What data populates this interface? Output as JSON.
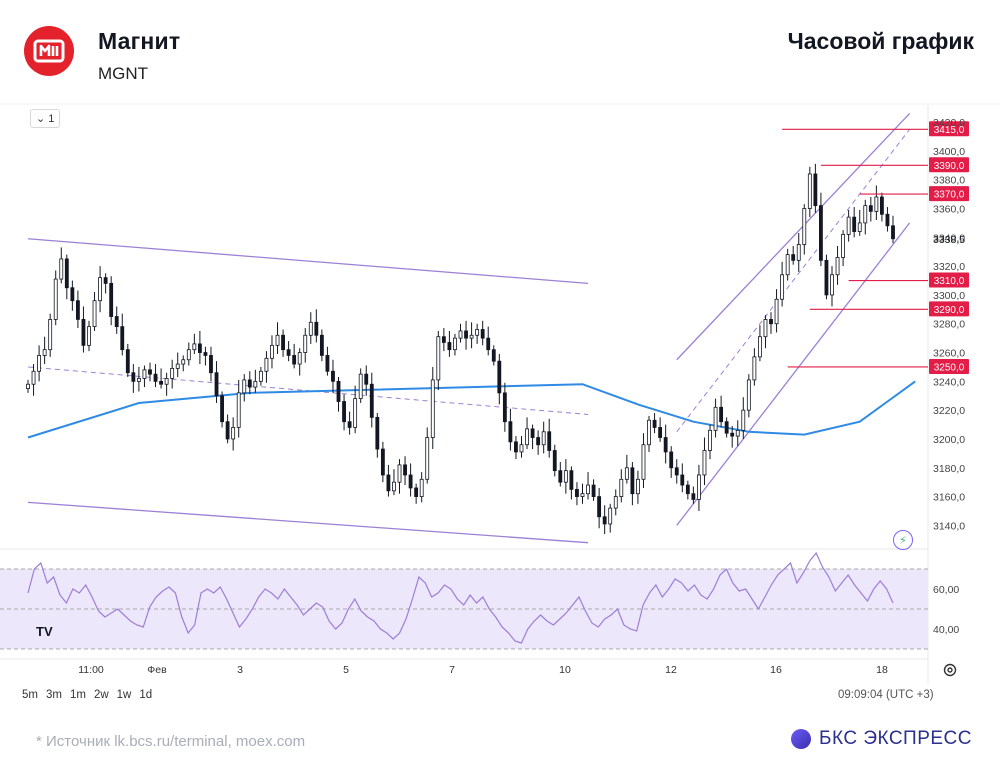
{
  "header": {
    "company": "Магнит",
    "ticker": "MGNT",
    "chart_type_title": "Часовой график"
  },
  "toolbar": {
    "interval_label": "1"
  },
  "timeframes": [
    "5m",
    "3m",
    "1m",
    "2w",
    "1w",
    "1d"
  ],
  "clock": "09:09:04 (UTC +3)",
  "footer": {
    "source": "*  Источник lk.bcs.ru/terminal, moex.com",
    "brand": "БКС ЭКСПРЕСС"
  },
  "colors": {
    "brand_red": "#e3222b",
    "candle": "#131722",
    "ma": "#2f8ae5",
    "channel": "#9c7fd6",
    "level": "#e11d48",
    "rsi": "#9c7fd6",
    "rsi_band": "#ede7fb"
  },
  "icons": [
    "magnit-logo-icon",
    "chevron-down-icon",
    "tradingview-logo-icon",
    "lightning-icon",
    "settings-icon",
    "bcs-dot-icon"
  ],
  "chart_data": {
    "type": "candlestick",
    "price_axis": {
      "range": [
        3125,
        3427
      ],
      "ticks": [
        3140,
        3160,
        3180,
        3200,
        3220,
        3240,
        3260,
        3280,
        3300,
        3320,
        3340,
        3360,
        3380,
        3400,
        3420
      ],
      "tick_labels": [
        "3140,0",
        "3160,0",
        "3180,0",
        "3200,0",
        "3220,0",
        "3240,0",
        "3260,0",
        "3280,0",
        "3300,0",
        "3320,0",
        "3340,0",
        "3360,0",
        "3380,0",
        "3400,0",
        "3420,0"
      ],
      "last_price_label": "3338,5"
    },
    "time_axis": {
      "labels": [
        "11:00",
        "Фев",
        "3",
        "5",
        "7",
        "10",
        "12",
        "16",
        "18"
      ]
    },
    "levels": [
      {
        "value": 3415,
        "label": "3415,0"
      },
      {
        "value": 3390,
        "label": "3390,0"
      },
      {
        "value": 3370,
        "label": "3370,0"
      },
      {
        "value": 3310,
        "label": "3310,0"
      },
      {
        "value": 3290,
        "label": "3290,0"
      },
      {
        "value": 3250,
        "label": "3250,0"
      }
    ],
    "closes": [
      3238,
      3247,
      3258,
      3262,
      3283,
      3311,
      3325,
      3305,
      3296,
      3283,
      3265,
      3278,
      3296,
      3312,
      3308,
      3285,
      3278,
      3262,
      3246,
      3240,
      3242,
      3248,
      3245,
      3240,
      3238,
      3242,
      3249,
      3252,
      3255,
      3262,
      3266,
      3260,
      3258,
      3246,
      3230,
      3212,
      3200,
      3208,
      3232,
      3241,
      3236,
      3240,
      3247,
      3256,
      3265,
      3272,
      3262,
      3258,
      3252,
      3260,
      3272,
      3281,
      3272,
      3258,
      3247,
      3240,
      3226,
      3212,
      3208,
      3228,
      3245,
      3238,
      3215,
      3193,
      3175,
      3164,
      3170,
      3182,
      3175,
      3166,
      3160,
      3172,
      3201,
      3241,
      3271,
      3267,
      3262,
      3270,
      3275,
      3270,
      3272,
      3276,
      3270,
      3262,
      3254,
      3232,
      3212,
      3198,
      3191,
      3196,
      3207,
      3201,
      3196,
      3205,
      3192,
      3178,
      3170,
      3178,
      3165,
      3160,
      3162,
      3168,
      3160,
      3146,
      3141,
      3152,
      3160,
      3172,
      3180,
      3162,
      3172,
      3196,
      3213,
      3208,
      3201,
      3191,
      3180,
      3175,
      3168,
      3162,
      3158,
      3175,
      3192,
      3206,
      3222,
      3212,
      3204,
      3202,
      3206,
      3220,
      3241,
      3257,
      3271,
      3283,
      3280,
      3297,
      3314,
      3328,
      3324,
      3335,
      3360,
      3384,
      3362,
      3324,
      3300,
      3314,
      3326,
      3342,
      3354,
      3344,
      3350,
      3362,
      3358,
      3368,
      3356,
      3348,
      3339
    ],
    "ma_line": [
      [
        0,
        3201
      ],
      [
        20,
        3225
      ],
      [
        40,
        3232
      ],
      [
        60,
        3234
      ],
      [
        80,
        3236
      ],
      [
        100,
        3238
      ],
      [
        110,
        3224
      ],
      [
        120,
        3212
      ],
      [
        130,
        3205
      ],
      [
        140,
        3203
      ],
      [
        150,
        3212
      ],
      [
        160,
        3240
      ]
    ],
    "channels": [
      {
        "from": [
          0,
          3339
        ],
        "to": [
          101,
          3308
        ]
      },
      {
        "from": [
          0,
          3156
        ],
        "to": [
          101,
          3128
        ]
      },
      {
        "from": [
          117,
          3255
        ],
        "to": [
          159,
          3426
        ]
      },
      {
        "from": [
          117,
          3140
        ],
        "to": [
          159,
          3350
        ]
      }
    ],
    "trend_dashed": [
      {
        "from": [
          0,
          3250
        ],
        "to": [
          101,
          3217
        ]
      },
      {
        "from": [
          117,
          3205
        ],
        "to": [
          159,
          3415
        ]
      }
    ],
    "rsi": {
      "range": [
        25,
        80
      ],
      "ticks": [
        40,
        60
      ],
      "tick_labels": [
        "40,00",
        "60,00"
      ],
      "upper": 70,
      "lower": 30,
      "values": [
        58,
        70,
        73,
        63,
        66,
        57,
        53,
        60,
        58,
        62,
        56,
        49,
        46,
        48,
        50,
        47,
        44,
        42,
        41,
        51,
        56,
        59,
        61,
        58,
        46,
        38,
        42,
        58,
        60,
        58,
        61,
        55,
        48,
        41,
        45,
        50,
        56,
        60,
        58,
        55,
        60,
        56,
        52,
        47,
        50,
        53,
        51,
        44,
        40,
        43,
        50,
        55,
        49,
        46,
        44,
        40,
        38,
        35,
        38,
        45,
        55,
        66,
        63,
        56,
        58,
        62,
        60,
        55,
        52,
        57,
        53,
        56,
        50,
        46,
        41,
        38,
        34,
        33,
        40,
        44,
        47,
        44,
        42,
        45,
        48,
        52,
        56,
        49,
        43,
        41,
        45,
        47,
        50,
        42,
        40,
        39,
        52,
        58,
        62,
        56,
        60,
        65,
        63,
        59,
        62,
        57,
        55,
        60,
        67,
        70,
        63,
        59,
        60,
        55,
        50,
        56,
        62,
        67,
        70,
        73,
        63,
        68,
        74,
        78,
        71,
        66,
        59,
        63,
        67,
        62,
        58,
        54,
        60,
        64,
        60,
        53
      ]
    }
  }
}
